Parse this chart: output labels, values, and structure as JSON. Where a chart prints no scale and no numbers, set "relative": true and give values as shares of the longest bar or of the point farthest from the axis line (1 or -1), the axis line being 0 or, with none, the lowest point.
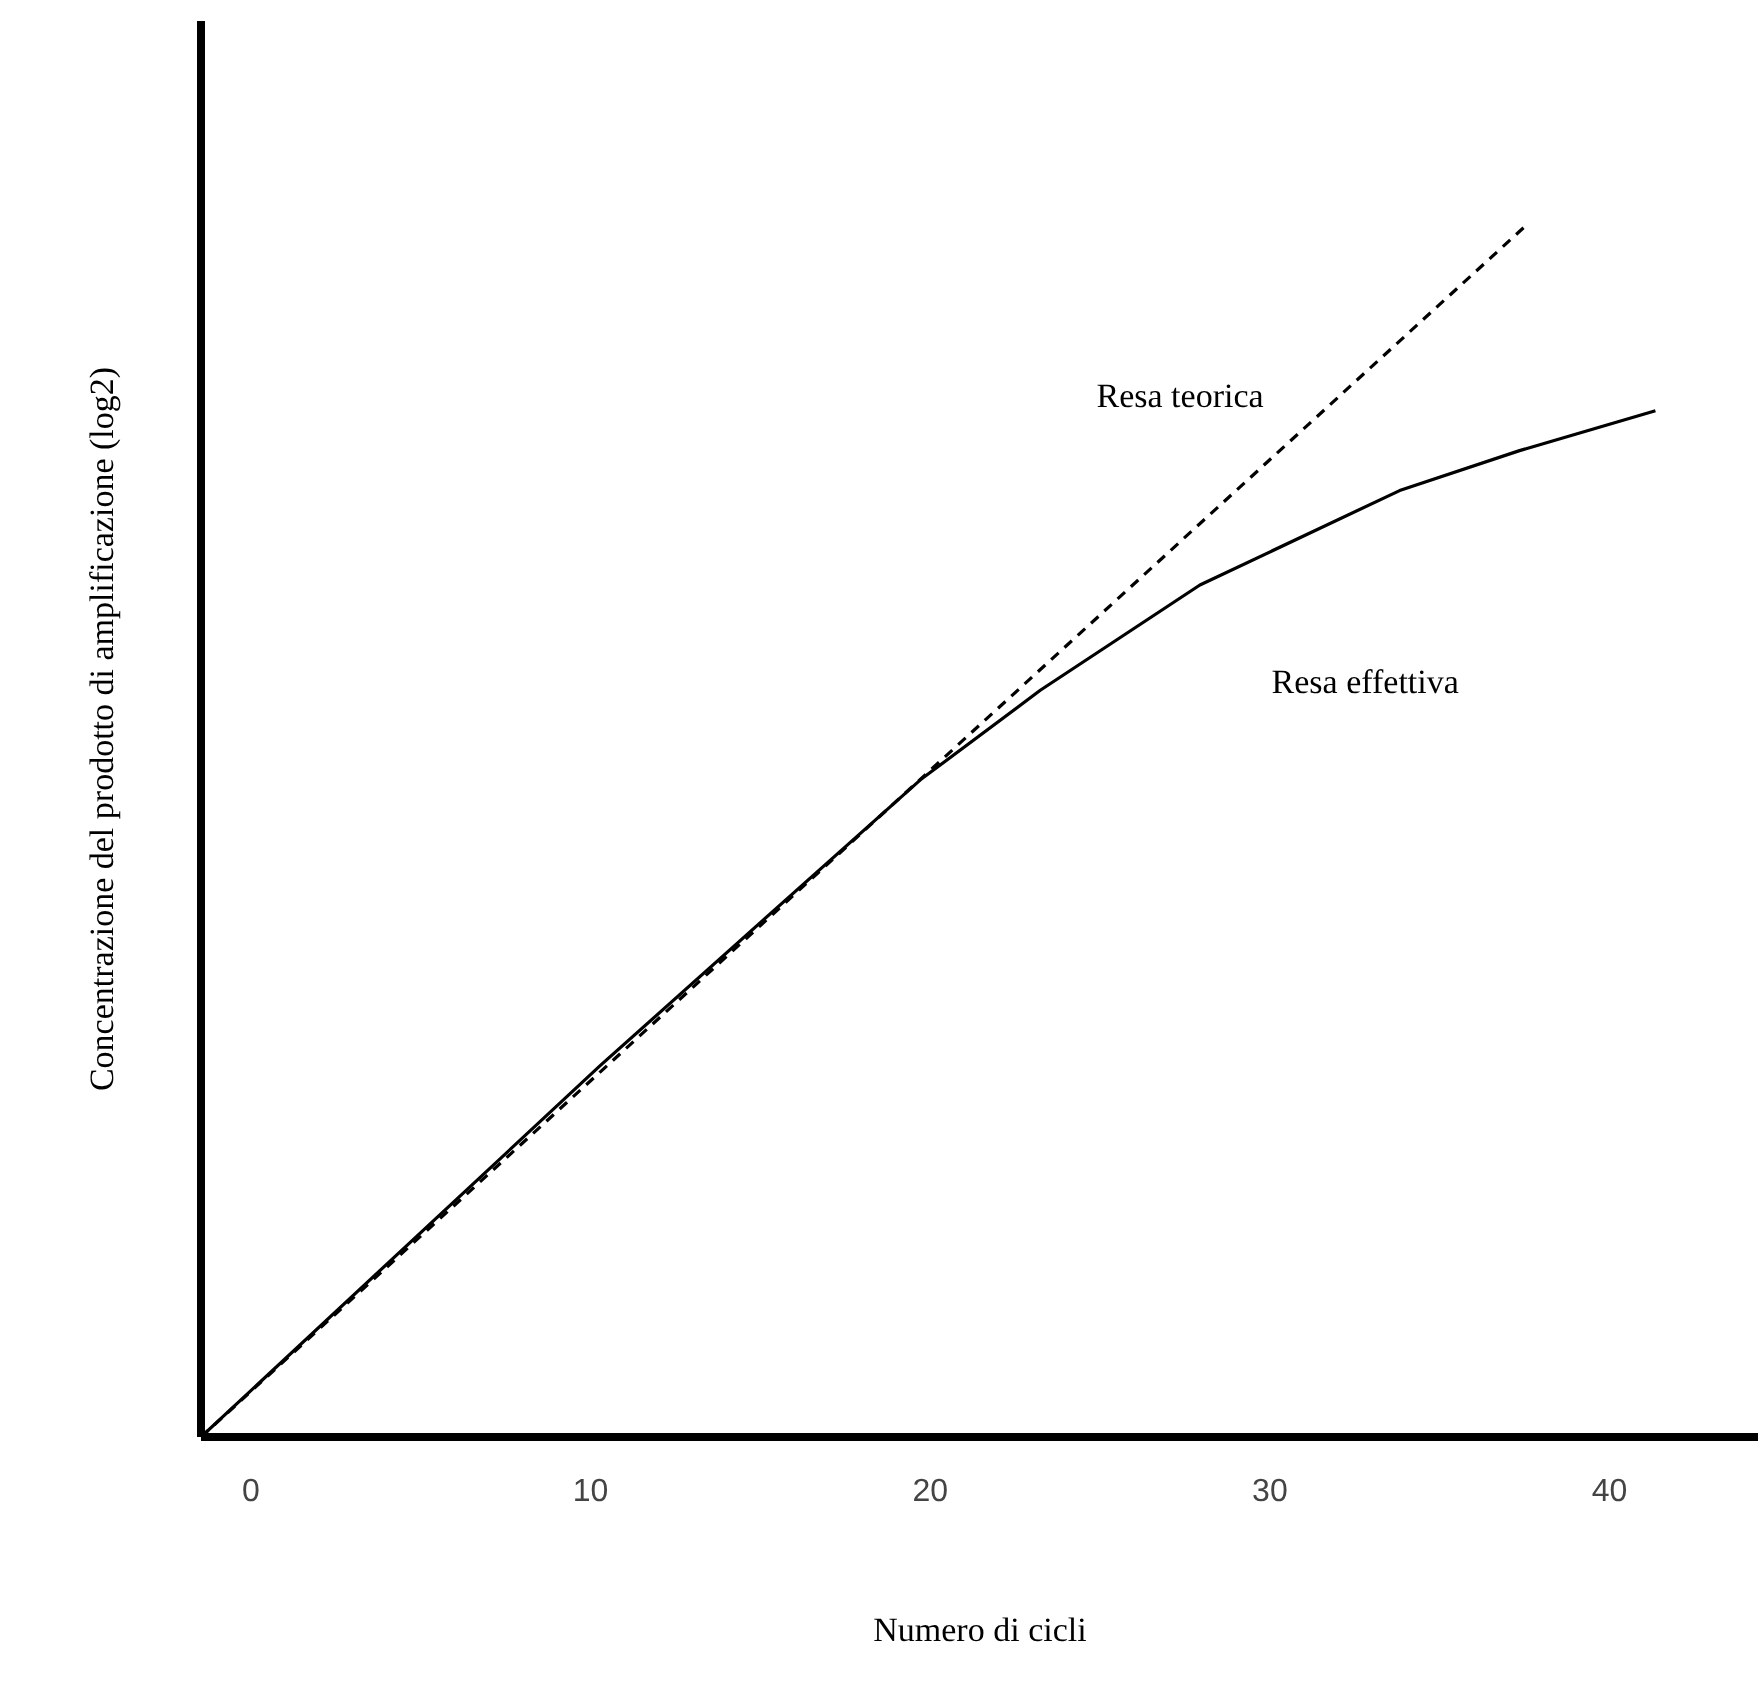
{
  "chart_data": {
    "type": "line",
    "xlabel": "Numero di cicli",
    "ylabel": "Concentrazione del prodotto di amplificazione (log2)",
    "relative": true,
    "xlim": [
      -1.47,
      44.4
    ],
    "xticks": [
      0,
      10,
      20,
      30,
      40
    ],
    "grid": false,
    "marker": "none",
    "series": [
      {
        "name": "Resa teorica",
        "color": "#000000",
        "line_style": "dashed",
        "x": [
          -1.47,
          37.5
        ],
        "values": [
          0,
          1
        ]
      },
      {
        "name": "Resa effettiva",
        "color": "#000000",
        "line_style": "solid",
        "x": [
          -1.47,
          10.29,
          19.71,
          23.24,
          27.94,
          33.82,
          37.35,
          41.35
        ],
        "values": [
          0,
          0.307,
          0.543,
          0.617,
          0.704,
          0.782,
          0.815,
          0.848
        ]
      }
    ]
  }
}
